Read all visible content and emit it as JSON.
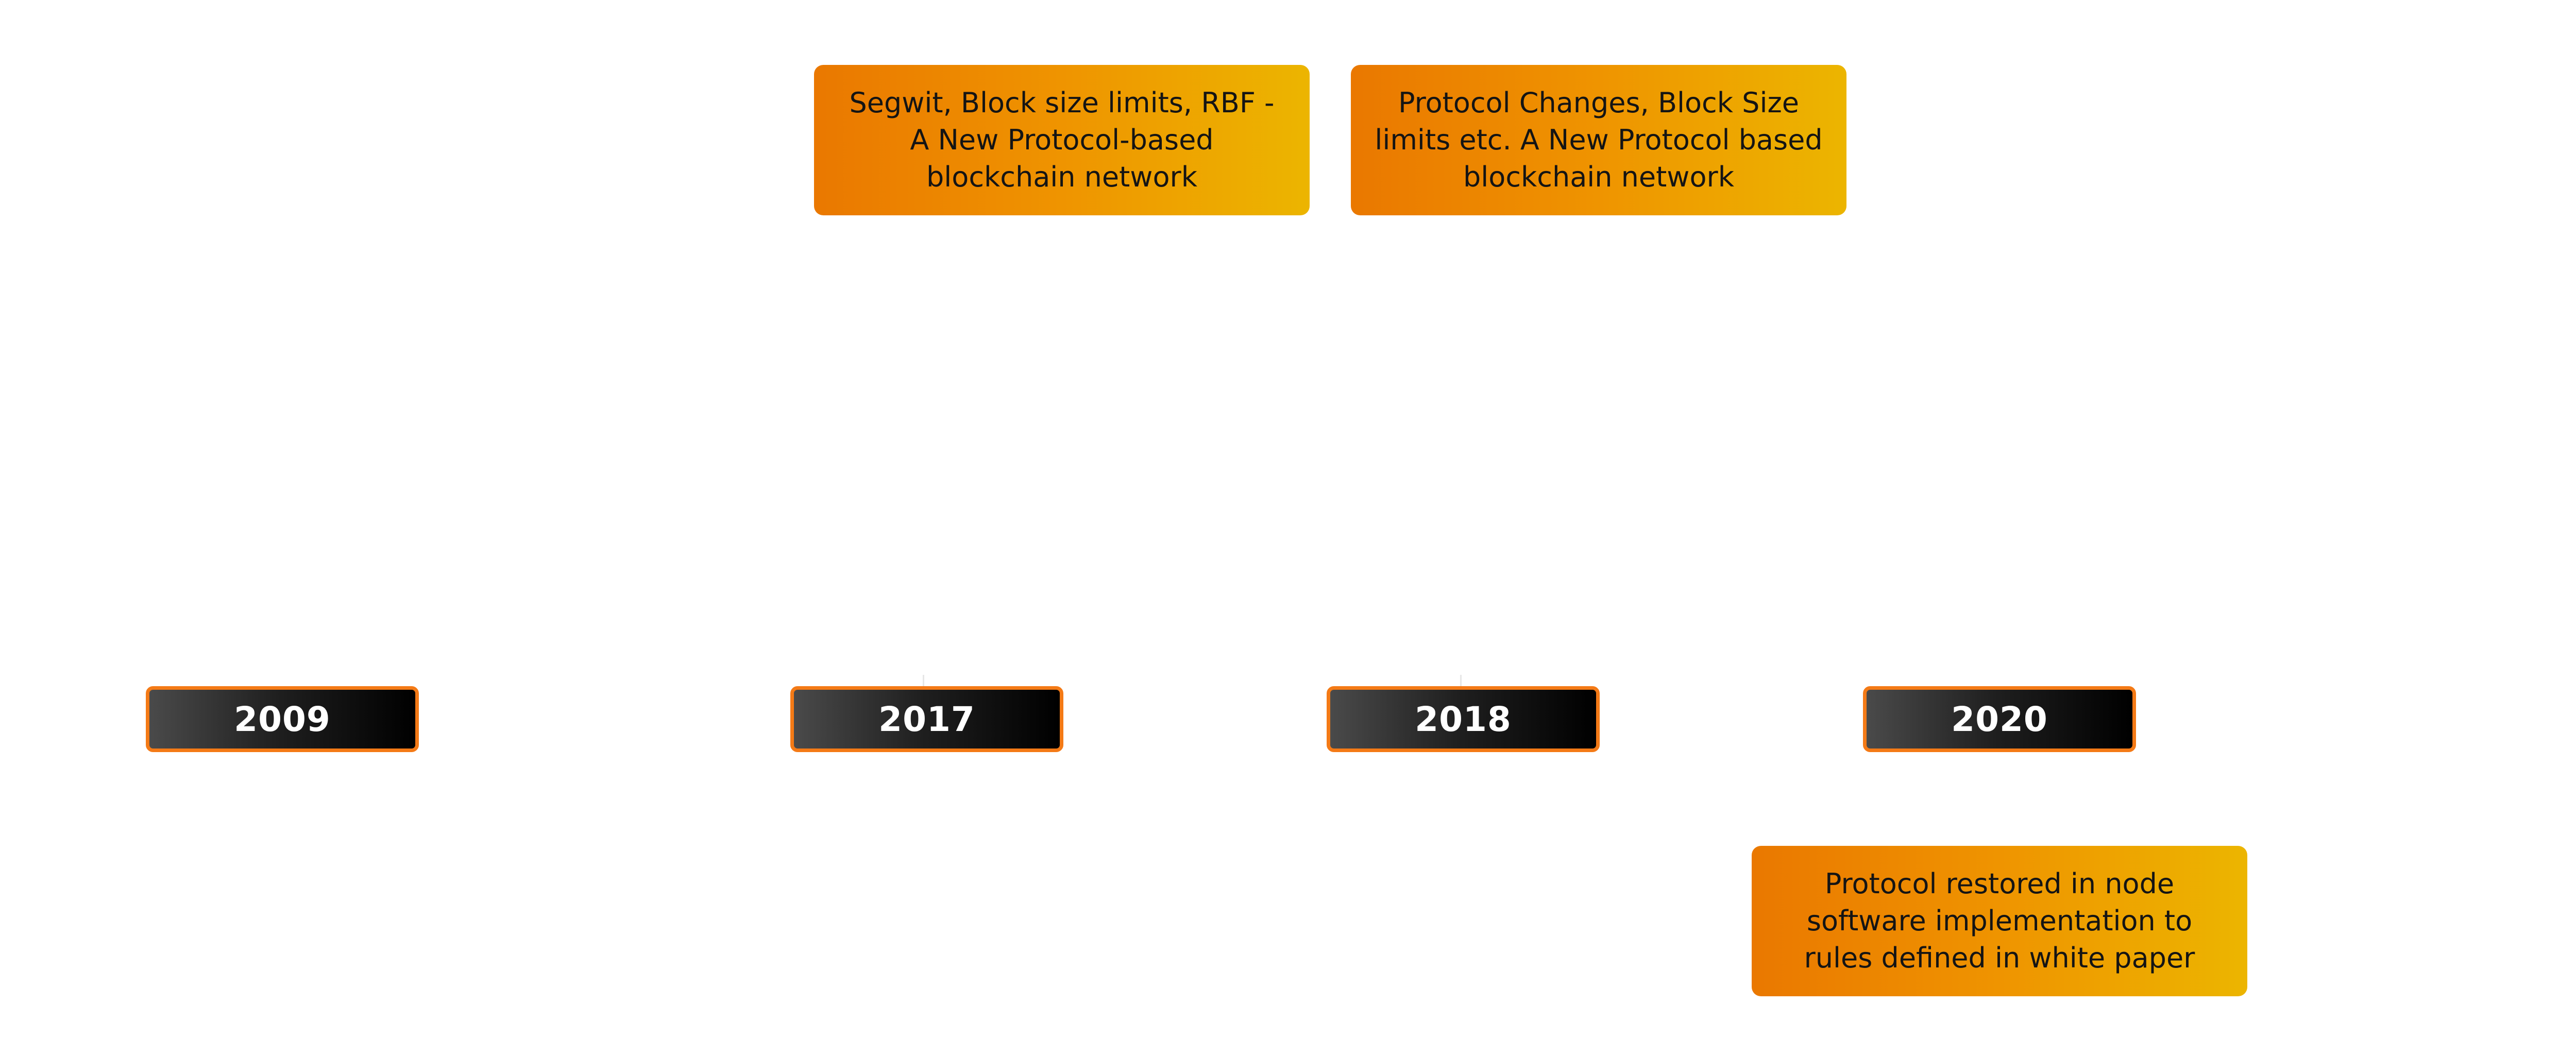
{
  "timeline": {
    "years": [
      {
        "label": "2009"
      },
      {
        "label": "2017"
      },
      {
        "label": "2018"
      },
      {
        "label": "2020"
      }
    ],
    "events": [
      {
        "year": "2017",
        "text": "Segwit, Block size limits, RBF - A New Protocol-based blockchain network"
      },
      {
        "year": "2018",
        "text": "Protocol Changes, Block Size limits etc. A New Protocol based blockchain network"
      },
      {
        "year": "2020",
        "text": "Protocol restored in node software implementation to rules defined in white paper"
      }
    ]
  },
  "colors": {
    "pill_border": "#f47a16",
    "pill_gradient_start": "#4a4a4a",
    "pill_gradient_end": "#000000",
    "box_gradient_start": "#ea7800",
    "box_gradient_end": "#ecb500",
    "text_dark": "#141414",
    "text_light": "#ffffff"
  }
}
